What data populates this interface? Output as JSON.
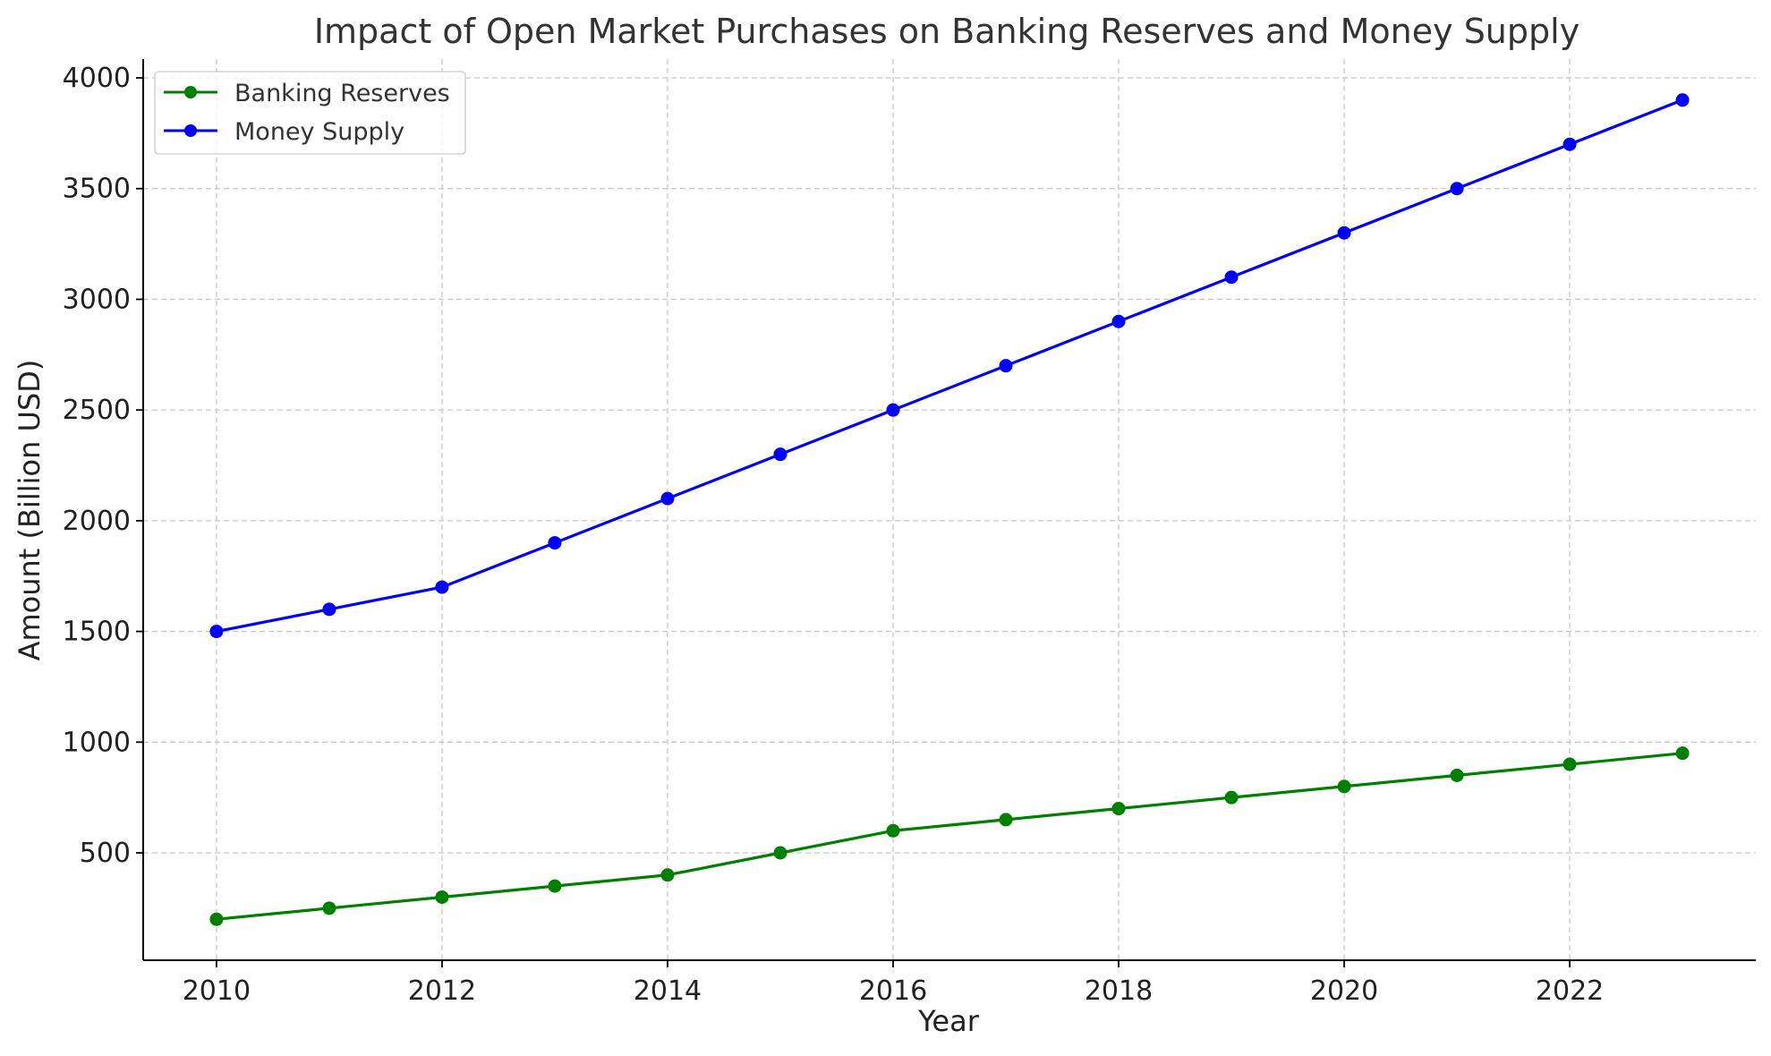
{
  "chart_data": {
    "type": "line",
    "title": "Impact of Open Market Purchases on Banking Reserves and Money Supply",
    "xlabel": "Year",
    "ylabel": "Amount (Billion USD)",
    "x": [
      2010,
      2011,
      2012,
      2013,
      2014,
      2015,
      2016,
      2017,
      2018,
      2019,
      2020,
      2021,
      2022,
      2023
    ],
    "xlim": [
      2009.35,
      2023.65
    ],
    "ylim": [
      15,
      4085
    ],
    "x_ticks": [
      2010,
      2012,
      2014,
      2016,
      2018,
      2020,
      2022
    ],
    "y_ticks": [
      500,
      1000,
      1500,
      2000,
      2500,
      3000,
      3500,
      4000
    ],
    "grid": true,
    "legend_position": "top-left",
    "series": [
      {
        "name": "Banking Reserves",
        "color": "#008000",
        "marker": "circle",
        "values": [
          200,
          250,
          300,
          350,
          400,
          500,
          600,
          650,
          700,
          750,
          800,
          850,
          900,
          950
        ]
      },
      {
        "name": "Money Supply",
        "color": "#0000ff",
        "marker": "circle",
        "values": [
          1500,
          1600,
          1700,
          1900,
          2100,
          2300,
          2500,
          2700,
          2900,
          3100,
          3300,
          3500,
          3700,
          3900
        ]
      }
    ]
  }
}
